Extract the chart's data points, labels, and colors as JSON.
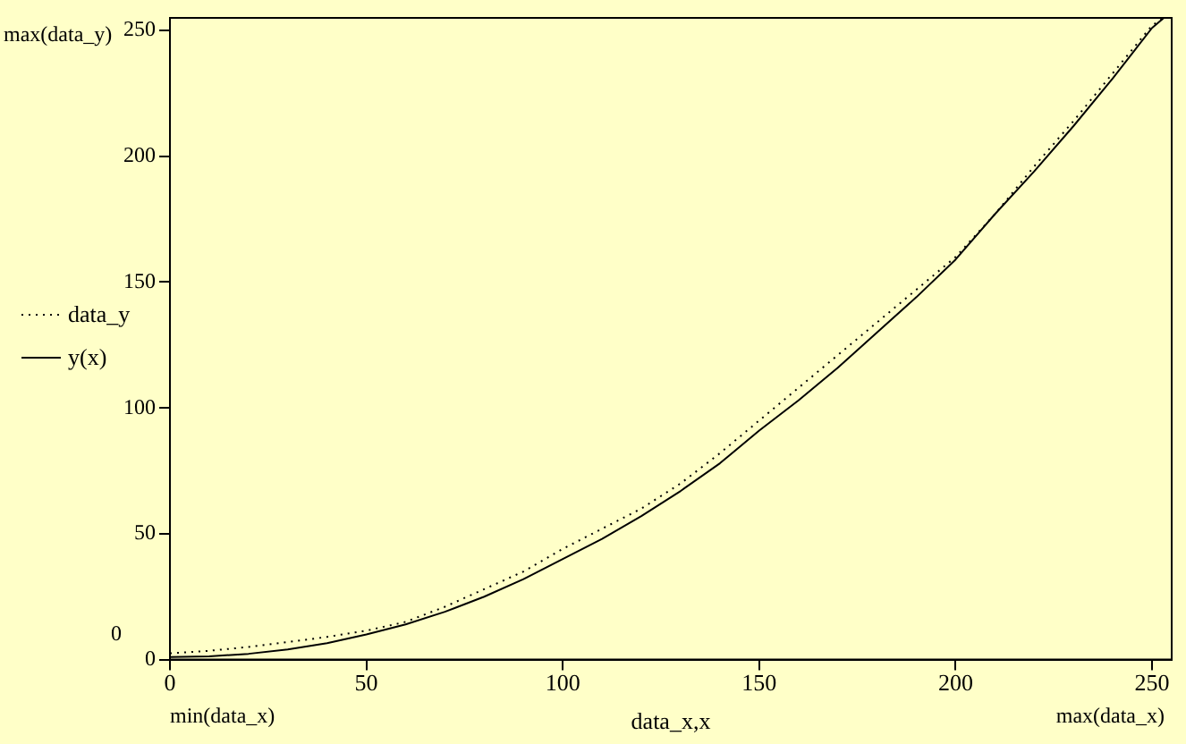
{
  "chart_data": {
    "type": "line",
    "xlabel": "data_x,x",
    "annotations": [
      "max(data_y)",
      "0",
      "min(data_x)",
      "max(data_x)"
    ],
    "xlim": [
      0,
      255
    ],
    "ylim": [
      0,
      255
    ],
    "xticks": [
      0,
      50,
      100,
      150,
      200,
      250
    ],
    "yticks": [
      0,
      50,
      100,
      150,
      200,
      250
    ],
    "grid": false,
    "legend": "left",
    "marker": "none",
    "series": [
      {
        "name": "data_y",
        "color": "#000000",
        "line_style": "dotted",
        "x": [
          0,
          10,
          20,
          30,
          40,
          50,
          60,
          70,
          80,
          90,
          100,
          110,
          120,
          130,
          140,
          150,
          160,
          170,
          180,
          190,
          200,
          210,
          220,
          230,
          240,
          250,
          253
        ],
        "values": [
          2.5,
          3.5,
          5,
          7,
          9,
          11.5,
          15,
          21,
          28,
          35,
          44,
          52,
          60,
          70,
          82,
          95,
          108,
          121,
          134,
          147,
          160,
          177,
          196,
          214,
          233,
          252,
          255
        ]
      },
      {
        "name": "y(x)",
        "color": "#000000",
        "line_style": "solid",
        "x": [
          0,
          10,
          20,
          30,
          40,
          50,
          60,
          70,
          80,
          90,
          100,
          110,
          120,
          130,
          140,
          150,
          160,
          170,
          180,
          190,
          200,
          210,
          220,
          230,
          240,
          250,
          253
        ],
        "values": [
          1,
          1.3,
          2.3,
          4,
          6.5,
          10,
          14,
          19,
          25,
          32,
          40,
          48,
          57,
          67,
          78,
          91,
          103,
          116,
          130,
          144,
          159,
          177,
          194,
          212,
          231,
          251,
          255
        ]
      }
    ]
  }
}
